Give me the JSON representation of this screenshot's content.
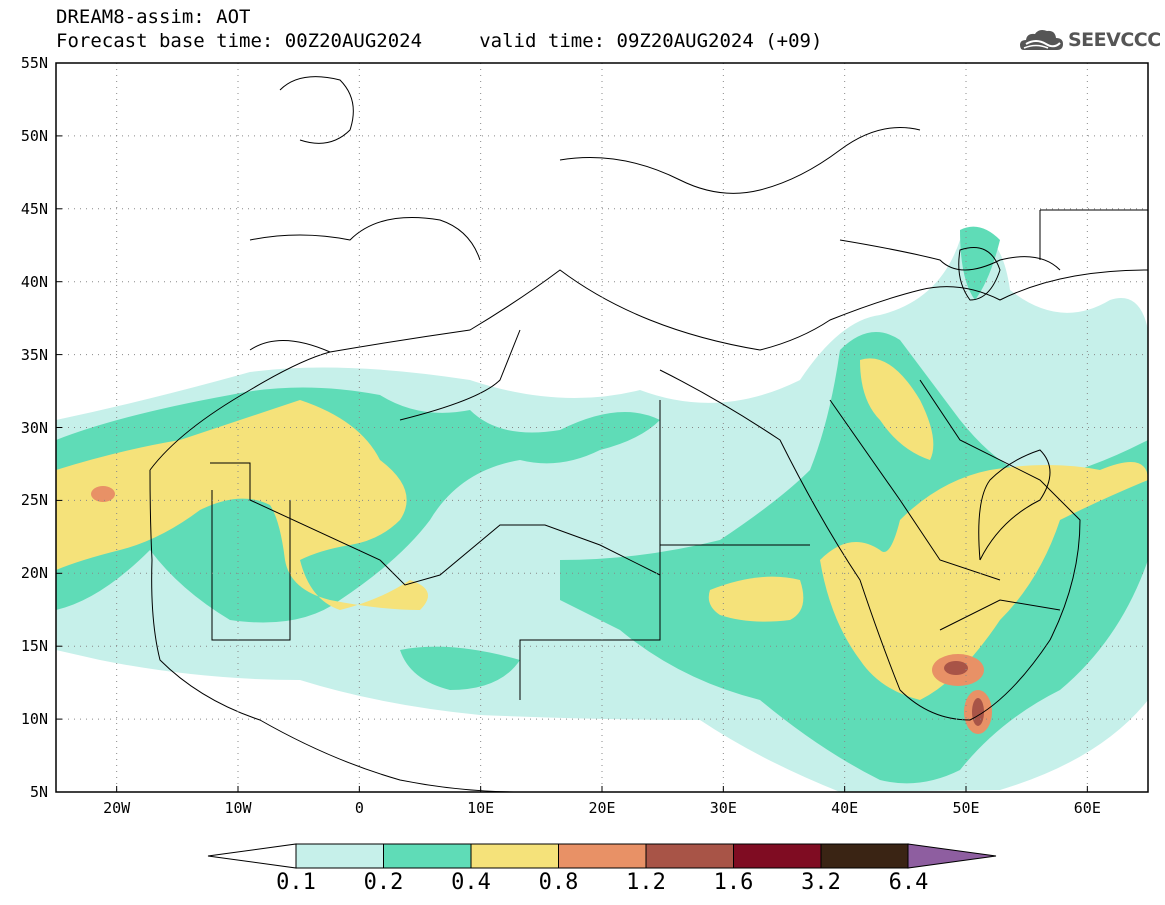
{
  "header": {
    "title_line1": "DREAM8-assim: AOT",
    "title_line2": "Forecast base time: 00Z20AUG2024     valid time: 09Z20AUG2024 (+09)",
    "logo_text": "SEEVCCC",
    "logo_icon": "cloud-logo-icon"
  },
  "map": {
    "lat_range": [
      5,
      55
    ],
    "lon_range": [
      -25,
      65
    ],
    "lat_labels": [
      "55N",
      "50N",
      "45N",
      "40N",
      "35N",
      "30N",
      "25N",
      "20N",
      "15N",
      "10N",
      "5N"
    ],
    "lon_labels": [
      "20W",
      "10W",
      "0",
      "10E",
      "20E",
      "30E",
      "40E",
      "50E",
      "60E"
    ],
    "field": "AOT",
    "gridlines": "dotted"
  },
  "colorbar": {
    "labels": [
      "0.1",
      "0.2",
      "0.4",
      "0.8",
      "1.2",
      "1.6",
      "3.2",
      "6.4"
    ],
    "colors": [
      "#c6f0ea",
      "#5fdcb7",
      "#f5e27a",
      "#e89166",
      "#a85447",
      "#7f0c22",
      "#3a2414",
      "#8e5ea0"
    ],
    "under_color": "#ffffff"
  }
}
